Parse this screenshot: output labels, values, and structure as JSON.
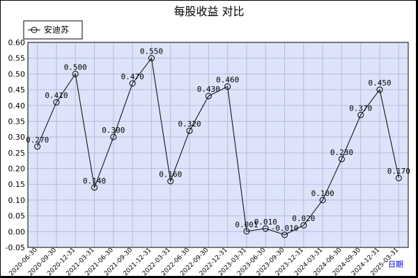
{
  "chart_data": {
    "type": "line",
    "title": "每股收益  对比",
    "period_label": "日期",
    "legend_position": "top-left",
    "grid": true,
    "ylim": [
      -0.05,
      0.6
    ],
    "y_ticks": [
      "-0.05",
      "0.00",
      "0.05",
      "0.10",
      "0.15",
      "0.20",
      "0.25",
      "0.30",
      "0.35",
      "0.40",
      "0.45",
      "0.50",
      "0.55",
      "0.60"
    ],
    "categories": [
      "2020-06-30",
      "2020-09-30",
      "2020-12-31",
      "2021-03-31",
      "2021-06-30",
      "2021-09-30",
      "2021-12-31",
      "2022-03-31",
      "2022-06-30",
      "2022-09-30",
      "2022-12-31",
      "2023-03-31",
      "2023-06-30",
      "2023-09-30",
      "2023-12-31",
      "2024-03-31",
      "2024-06-30",
      "2024-09-30",
      "2024-12-31",
      "2025-03-31"
    ],
    "series": [
      {
        "name": "安迪苏",
        "values": [
          0.27,
          0.41,
          0.5,
          0.14,
          0.3,
          0.47,
          0.55,
          0.16,
          0.32,
          0.43,
          0.46,
          0.001,
          0.01,
          -0.01,
          0.02,
          0.1,
          0.23,
          0.37,
          0.45,
          0.17
        ],
        "labels": [
          "0.270",
          "0.410",
          "0.500",
          "0.140",
          "0.300",
          "0.470",
          "0.550",
          "0.160",
          "0.320",
          "0.430",
          "0.460",
          "0.001",
          "0.010",
          "-0.010",
          "0.020",
          "0.100",
          "0.230",
          "0.370",
          "0.450",
          "0.170"
        ]
      }
    ],
    "colors": {
      "plot_bg": "#dde3f8",
      "grid": "#b4bce0",
      "line": "#000000"
    }
  }
}
